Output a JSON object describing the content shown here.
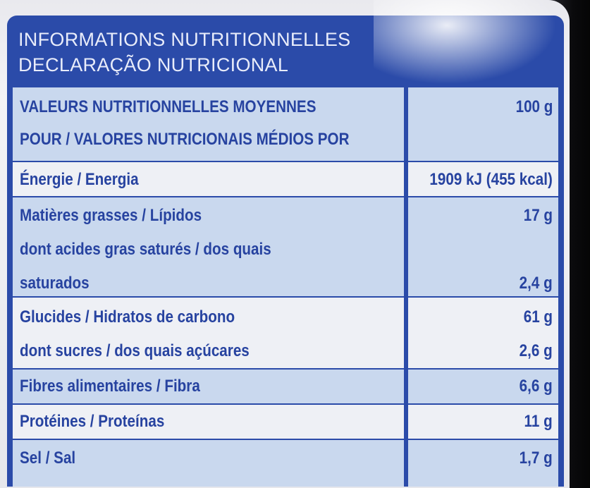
{
  "header": {
    "line1": "INFORMATIONS NUTRITIONNELLES",
    "line2": "DECLARAÇÃO NUTRICIONAL"
  },
  "table": {
    "head": {
      "label_line1": "VALEURS NUTRITIONNELLES MOYENNES",
      "label_line2": "POUR / VALORES NUTRICIONAIS MÉDIOS POR",
      "value": "100 g"
    },
    "rows": [
      {
        "label": "Énergie / Energia",
        "value": "1909 kJ (455 kcal)"
      },
      {
        "label": "Matières grasses / Lípidos",
        "value": "17 g"
      },
      {
        "label": "dont acides gras saturés / dos quais",
        "value": ""
      },
      {
        "label": "saturados",
        "value": "2,4 g"
      },
      {
        "label": "Glucides / Hidratos de carbono",
        "value": "61 g"
      },
      {
        "label": "dont sucres / dos quais açúcares",
        "value": "2,6 g"
      },
      {
        "label": "Fibres alimentaires / Fibra",
        "value": "6,6 g"
      },
      {
        "label": "Protéines / Proteínas",
        "value": "11 g"
      },
      {
        "label": "Sel / Sal",
        "value": "1,7 g"
      }
    ]
  },
  "colors": {
    "brand_blue": "#2b4ba9",
    "text_blue": "#2743a0",
    "band_blue": "#c9d8ee",
    "band_light": "#eef0f5"
  }
}
